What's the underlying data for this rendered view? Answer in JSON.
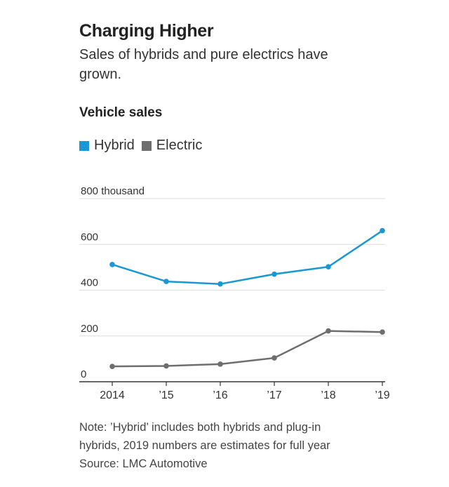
{
  "header": {
    "title": "Charging Higher",
    "subtitle": "Sales of hybrids and pure electrics have grown.",
    "section_title": "Vehicle sales"
  },
  "legend": [
    {
      "label": "Hybrid",
      "color": "#1a97d5"
    },
    {
      "label": "Electric",
      "color": "#6e6e6e"
    }
  ],
  "chart_data": {
    "type": "line",
    "title": "Vehicle sales",
    "x": [
      "2014",
      "’15",
      "’16",
      "’17",
      "’18",
      "’19"
    ],
    "series": [
      {
        "name": "Hybrid",
        "color": "#1a97d5",
        "values": [
          512,
          438,
          427,
          470,
          502,
          660
        ]
      },
      {
        "name": "Electric",
        "color": "#6e6e6e",
        "values": [
          67,
          69,
          77,
          104,
          222,
          217
        ]
      }
    ],
    "ylim": [
      0,
      800
    ],
    "yticks": [
      0,
      200,
      400,
      600,
      800
    ],
    "ytick_labels": [
      "0",
      "200",
      "400",
      "600",
      "800 thousand"
    ],
    "xlabel": "",
    "ylabel": "",
    "grid": true,
    "legend_position": "top-left"
  },
  "notes": {
    "line1": "Note: ’Hybrid’ includes both hybrids and plug-in",
    "line2": "hybrids, 2019 numbers are estimates for full year",
    "source": "Source: LMC Automotive"
  }
}
